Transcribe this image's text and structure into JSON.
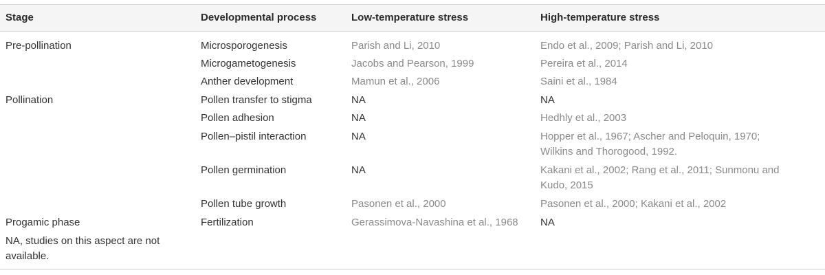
{
  "headers": {
    "stage": "Stage",
    "process": "Developmental process",
    "low": "Low-temperature stress",
    "high": "High-temperature stress"
  },
  "rows": [
    {
      "stage": "Pre-pollination",
      "process": "Microsporogenesis",
      "low": "Parish and Li, 2010",
      "high": [
        "Endo et al., 2009; Parish and Li, 2010"
      ]
    },
    {
      "stage": "",
      "process": "Microgametogenesis",
      "low": "Jacobs and Pearson, 1999",
      "high": [
        "Pereira et al., 2014"
      ]
    },
    {
      "stage": "",
      "process": "Anther development",
      "low": "Mamun et al., 2006",
      "high": [
        "Saini et al., 1984"
      ]
    },
    {
      "stage": "Pollination",
      "process": "Pollen transfer to stigma",
      "low": "NA",
      "high": [
        "NA"
      ]
    },
    {
      "stage": "",
      "process": "Pollen adhesion",
      "low": "NA",
      "high": [
        "Hedhly et al., 2003"
      ]
    },
    {
      "stage": "",
      "process": "Pollen–pistil interaction",
      "low": "NA",
      "high": [
        "Hopper et al., 1967; Ascher and Peloquin, 1970;",
        "Wilkins and Thorogood, 1992."
      ]
    },
    {
      "stage": "",
      "process": "Pollen germination",
      "low": "NA",
      "high": [
        "Kakani et al., 2002; Rang et al., 2011; Sunmonu and",
        "Kudo, 2015"
      ]
    },
    {
      "stage": "",
      "process": "Pollen tube growth",
      "low": "Pasonen et al., 2000",
      "high": [
        "Pasonen et al., 2000; Kakani et al., 2002"
      ]
    },
    {
      "stage": "Progamic phase",
      "process": "Fertilization",
      "low": "Gerassimova-Navashina et al., 1968",
      "high": [
        "NA"
      ]
    }
  ],
  "footnote": [
    "NA, studies on this aspect are not",
    "available."
  ]
}
